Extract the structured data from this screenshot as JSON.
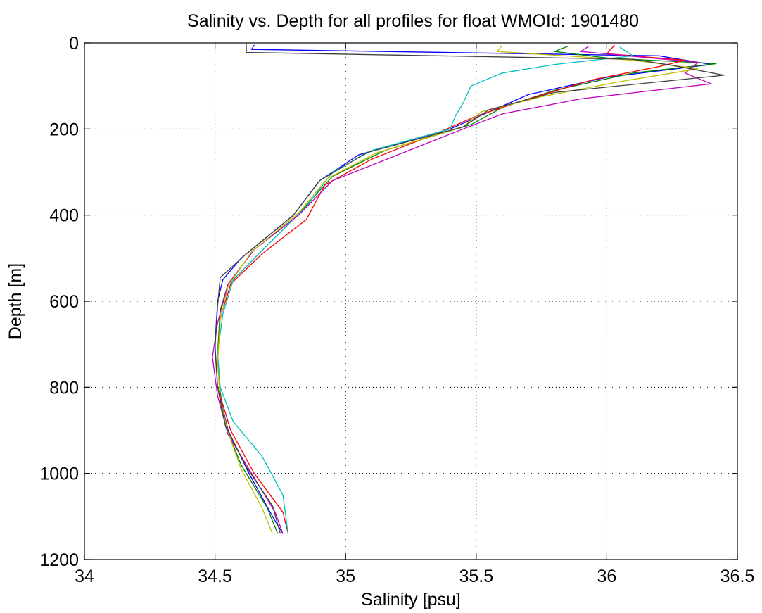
{
  "chart_data": {
    "type": "line",
    "title": "Salinity vs. Depth for all profiles for float WMOId: 1901480",
    "xlabel": "Salinity [psu]",
    "ylabel": "Depth [m]",
    "xlim": [
      34,
      36.5
    ],
    "ylim": [
      0,
      1200
    ],
    "y_reversed": true,
    "grid": true,
    "legend": "none",
    "x_ticks": [
      "34",
      "34.5",
      "35",
      "35.5",
      "36",
      "36.5"
    ],
    "y_ticks": [
      "0",
      "200",
      "400",
      "600",
      "800",
      "1000",
      "1200"
    ],
    "series": [
      {
        "color": "#0000ff",
        "depth": [
          5,
          15,
          30,
          50,
          80,
          120,
          160,
          200,
          260,
          320,
          400,
          500,
          550,
          600,
          700,
          800,
          900,
          1000,
          1100,
          1140
        ],
        "salinity": [
          34.65,
          34.64,
          36.2,
          36.4,
          36.0,
          35.7,
          35.55,
          35.4,
          35.05,
          34.9,
          34.8,
          34.6,
          34.53,
          34.51,
          34.5,
          34.51,
          34.55,
          34.63,
          34.72,
          34.76
        ]
      },
      {
        "color": "#008000",
        "depth": [
          8,
          20,
          35,
          48,
          70,
          110,
          150,
          190,
          250,
          310,
          390,
          480,
          560,
          620,
          720,
          810,
          890,
          980,
          1080,
          1140
        ],
        "salinity": [
          35.85,
          35.8,
          36.0,
          36.42,
          36.1,
          35.8,
          35.6,
          35.48,
          35.15,
          34.95,
          34.83,
          34.65,
          34.55,
          34.52,
          34.51,
          34.52,
          34.54,
          34.6,
          34.7,
          34.74
        ]
      },
      {
        "color": "#ff0000",
        "depth": [
          5,
          25,
          40,
          55,
          85,
          130,
          170,
          210,
          270,
          330,
          410,
          490,
          560,
          640,
          740,
          820,
          900,
          1000,
          1090,
          1140
        ],
        "salinity": [
          36.03,
          36.0,
          36.3,
          36.2,
          35.95,
          35.7,
          35.5,
          35.35,
          35.1,
          34.92,
          34.85,
          34.68,
          34.56,
          34.52,
          34.51,
          34.52,
          34.56,
          34.65,
          34.76,
          34.78
        ]
      },
      {
        "color": "#00bfbf",
        "depth": [
          10,
          30,
          50,
          70,
          100,
          140,
          170,
          200,
          250,
          300,
          380,
          470,
          550,
          630,
          720,
          800,
          880,
          960,
          1050,
          1140
        ],
        "salinity": [
          36.05,
          36.1,
          35.8,
          35.6,
          35.48,
          35.45,
          35.42,
          35.4,
          35.1,
          34.95,
          34.85,
          34.7,
          34.57,
          34.53,
          34.51,
          34.52,
          34.57,
          34.68,
          34.76,
          34.78
        ]
      },
      {
        "color": "#bf00bf",
        "depth": [
          8,
          20,
          45,
          70,
          95,
          130,
          165,
          200,
          260,
          320,
          400,
          480,
          560,
          650,
          730,
          820,
          910,
          1000,
          1090,
          1140
        ],
        "salinity": [
          35.93,
          35.9,
          36.35,
          36.3,
          36.4,
          35.9,
          35.6,
          35.45,
          35.2,
          34.95,
          34.82,
          34.65,
          34.55,
          34.51,
          34.49,
          34.51,
          34.55,
          34.64,
          34.73,
          34.76
        ]
      },
      {
        "color": "#bfbf00",
        "depth": [
          5,
          20,
          40,
          60,
          90,
          125,
          160,
          195,
          255,
          315,
          395,
          485,
          565,
          645,
          745,
          830,
          905,
          990,
          1080,
          1140
        ],
        "salinity": [
          35.6,
          35.58,
          36.1,
          36.35,
          36.05,
          35.75,
          35.52,
          35.45,
          35.12,
          34.93,
          34.82,
          34.64,
          34.55,
          34.52,
          34.51,
          34.52,
          34.55,
          34.6,
          34.68,
          34.72
        ]
      },
      {
        "color": "#404040",
        "depth": [
          3,
          22,
          38,
          52,
          75,
          115,
          155,
          195,
          255,
          320,
          400,
          490,
          545,
          610,
          710,
          800,
          890,
          985,
          1075,
          1140
        ],
        "salinity": [
          34.62,
          34.62,
          36.1,
          36.25,
          36.45,
          35.8,
          35.55,
          35.45,
          35.08,
          34.9,
          34.8,
          34.62,
          34.52,
          34.51,
          34.5,
          34.51,
          34.54,
          34.62,
          34.72,
          34.75
        ]
      }
    ]
  }
}
